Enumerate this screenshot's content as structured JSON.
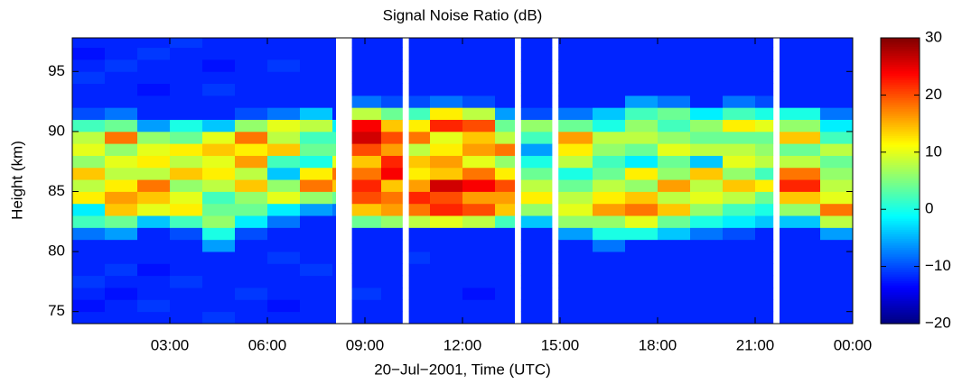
{
  "chart_data": {
    "type": "heatmap",
    "title": "Signal Noise Ratio (dB)",
    "x_label": "20−Jul−2001, Time (UTC)",
    "y_label": "Height (km)",
    "xlim": [
      0,
      24
    ],
    "xticks": [
      {
        "value": 3,
        "label": "03:00"
      },
      {
        "value": 6,
        "label": "06:00"
      },
      {
        "value": 9,
        "label": "09:00"
      },
      {
        "value": 12,
        "label": "12:00"
      },
      {
        "value": 15,
        "label": "15:00"
      },
      {
        "value": 18,
        "label": "18:00"
      },
      {
        "value": 21,
        "label": "21:00"
      },
      {
        "value": 24,
        "label": "00:00"
      }
    ],
    "ylim": [
      74,
      97.8
    ],
    "yticks": [
      75,
      80,
      85,
      90,
      95
    ],
    "clim": [
      -20,
      30
    ],
    "cticks": [
      {
        "value": -20,
        "label": "−20"
      },
      {
        "value": -10,
        "label": "−10"
      },
      0,
      10,
      20,
      30
    ],
    "colormap": "jet",
    "x_edges": [
      0,
      1,
      2,
      3,
      4,
      5,
      6,
      7,
      8,
      8.1,
      8.6,
      9.5,
      10.15,
      10.35,
      11,
      12,
      13,
      13.6,
      13.8,
      14.75,
      14.95,
      16,
      17,
      18,
      19,
      20,
      21,
      21.55,
      21.75,
      23,
      24
    ],
    "y_edges": [
      74,
      75,
      76,
      77,
      78,
      79,
      80,
      81,
      82,
      83,
      84,
      85,
      86,
      87,
      88,
      89,
      90,
      91,
      92,
      93,
      94,
      95,
      96,
      97,
      98
    ],
    "z": [
      [
        -12,
        -13,
        -12,
        -11,
        -12,
        -12,
        -12,
        -8,
        2,
        -2,
        12,
        8,
        14,
        6,
        10,
        8,
        2,
        -10,
        -12,
        -12,
        -11,
        -12,
        -13,
        -12
      ],
      [
        -12,
        -12,
        -13,
        -12,
        -11,
        -12,
        -12,
        -6,
        4,
        14,
        16,
        12,
        8,
        10,
        6,
        18,
        4,
        -8,
        -12,
        -12,
        -12,
        -11,
        -12,
        -12
      ],
      [
        -12,
        -11,
        -12,
        -12,
        -13,
        -12,
        -12,
        -12,
        -4,
        10,
        14,
        18,
        8,
        12,
        10,
        6,
        -6,
        -12,
        -12,
        -13,
        -12,
        -12,
        -11,
        -12
      ],
      [
        -12,
        -12,
        -12,
        -11,
        -12,
        -12,
        -12,
        -10,
        2,
        12,
        10,
        6,
        14,
        8,
        12,
        4,
        0,
        -12,
        -12,
        -12,
        -12,
        -12,
        -12,
        -11
      ],
      [
        -11,
        -12,
        -12,
        -12,
        -12,
        -12,
        -6,
        0,
        6,
        4,
        2,
        8,
        12,
        10,
        14,
        10,
        -4,
        -12,
        -12,
        -11,
        -12,
        -13,
        -12,
        -12
      ],
      [
        -12,
        -12,
        -11,
        -12,
        -12,
        -12,
        -12,
        -10,
        -2,
        4,
        6,
        14,
        8,
        16,
        12,
        18,
        6,
        -10,
        -12,
        -12,
        -12,
        -12,
        -12,
        -12
      ],
      [
        -12,
        -13,
        -12,
        -12,
        -12,
        -11,
        -12,
        -12,
        -8,
        -2,
        10,
        6,
        -4,
        2,
        14,
        8,
        10,
        -8,
        -12,
        -12,
        -12,
        -11,
        -12,
        -12
      ],
      [
        -12,
        -12,
        -12,
        -12,
        -11,
        -12,
        -12,
        -12,
        -12,
        -6,
        6,
        18,
        12,
        0,
        4,
        2,
        8,
        -4,
        -12,
        -12,
        -12,
        -12,
        -12,
        -12
      ],
      [
        -12,
        -12,
        -12,
        -12,
        -12,
        -12,
        -12,
        -12,
        -12,
        -8,
        4,
        14,
        18,
        10,
        4,
        2,
        -2,
        -12,
        -12,
        -12,
        -12,
        -12,
        -12,
        -12
      ],
      null,
      [
        -12,
        -12,
        -11,
        -12,
        -12,
        -12,
        -12,
        -12,
        4,
        14,
        20,
        22,
        18,
        14,
        20,
        26,
        24,
        8,
        -8,
        -12,
        -12,
        -12,
        -12,
        -12
      ],
      [
        -12,
        -12,
        -12,
        -12,
        -12,
        -12,
        -12,
        -12,
        6,
        16,
        18,
        14,
        24,
        22,
        16,
        20,
        14,
        4,
        -10,
        -12,
        -12,
        -12,
        -12,
        -12
      ],
      null,
      [
        -12,
        -12,
        -12,
        -12,
        -12,
        -11,
        -12,
        -12,
        8,
        18,
        22,
        16,
        12,
        14,
        8,
        18,
        12,
        2,
        -10,
        -12,
        -12,
        -12,
        -12,
        -12
      ],
      [
        -12,
        -12,
        -12,
        -12,
        -12,
        -12,
        -12,
        -12,
        10,
        22,
        20,
        26,
        14,
        16,
        12,
        10,
        22,
        12,
        -8,
        -12,
        -12,
        -12,
        -12,
        -12
      ],
      [
        -12,
        -12,
        -13,
        -12,
        -12,
        -12,
        -12,
        -12,
        8,
        20,
        16,
        24,
        18,
        10,
        16,
        14,
        20,
        8,
        -10,
        -12,
        -12,
        -12,
        -12,
        -12
      ],
      [
        -12,
        -12,
        -12,
        -12,
        -12,
        -12,
        -12,
        -12,
        2,
        14,
        16,
        20,
        12,
        6,
        18,
        8,
        4,
        -6,
        -12,
        -12,
        -12,
        -12,
        -12,
        -12
      ],
      null,
      [
        -12,
        -12,
        -12,
        -12,
        -12,
        -12,
        -12,
        -12,
        -4,
        6,
        12,
        8,
        4,
        0,
        -6,
        2,
        6,
        -10,
        -12,
        -12,
        -12,
        -12,
        -12,
        -12
      ],
      null,
      [
        -12,
        -12,
        -12,
        -12,
        -12,
        -12,
        -12,
        -6,
        6,
        10,
        8,
        4,
        0,
        8,
        12,
        16,
        4,
        -8,
        -12,
        -12,
        -12,
        -12,
        -12,
        -12
      ],
      [
        -12,
        -12,
        -12,
        -12,
        -12,
        -12,
        -8,
        0,
        6,
        16,
        12,
        8,
        4,
        2,
        6,
        8,
        0,
        -4,
        -12,
        -12,
        -12,
        -12,
        -12,
        -12
      ],
      [
        -12,
        -12,
        -12,
        -12,
        -12,
        -12,
        -12,
        0,
        10,
        18,
        14,
        6,
        12,
        -2,
        4,
        8,
        6,
        2,
        -6,
        -12,
        -12,
        -12,
        -12,
        -12
      ],
      [
        -12,
        -12,
        -12,
        -12,
        -12,
        -12,
        -12,
        -4,
        4,
        14,
        8,
        16,
        6,
        4,
        10,
        6,
        2,
        4,
        -8,
        -12,
        -12,
        -12,
        -12,
        -12
      ],
      [
        -12,
        -12,
        -12,
        -12,
        -12,
        -12,
        -12,
        -8,
        0,
        6,
        10,
        8,
        14,
        -4,
        8,
        4,
        6,
        -2,
        -12,
        -12,
        -12,
        -12,
        -12,
        -12
      ],
      [
        -12,
        -12,
        -12,
        -12,
        -12,
        -12,
        -12,
        -10,
        -2,
        2,
        8,
        14,
        6,
        10,
        8,
        4,
        12,
        2,
        -8,
        -12,
        -12,
        -12,
        -12,
        -12
      ],
      [
        -12,
        -12,
        -12,
        -12,
        -12,
        -12,
        -12,
        -12,
        -4,
        0,
        4,
        12,
        2,
        8,
        6,
        4,
        10,
        0,
        -10,
        -12,
        -12,
        -12,
        -12,
        -12
      ],
      null,
      [
        -12,
        -12,
        -12,
        -12,
        -12,
        -12,
        -12,
        -12,
        -4,
        6,
        14,
        22,
        18,
        8,
        4,
        14,
        6,
        0,
        -12,
        -12,
        -12,
        -12,
        -12,
        -12
      ],
      [
        -12,
        -12,
        -12,
        -12,
        -12,
        -12,
        -12,
        -6,
        8,
        18,
        10,
        8,
        6,
        4,
        8,
        2,
        -2,
        -8,
        -12,
        -12,
        -12,
        -12,
        -12,
        -12
      ]
    ]
  }
}
